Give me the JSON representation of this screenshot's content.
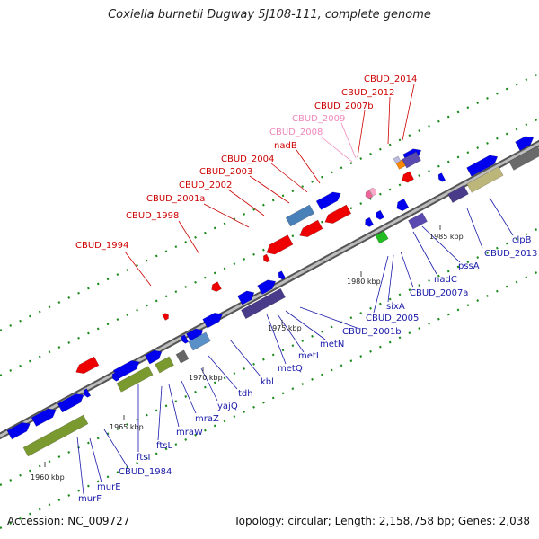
{
  "title": "Coxiella burnetii Dugway 5J108-111, complete genome",
  "footer": {
    "accession": "Accession: NC_009727",
    "info": "Topology: circular; Length: 2,158,758 bp; Genes: 2,038"
  },
  "colors": {
    "red_label": "#cc0000",
    "pink_label": "#ee88bb",
    "blue_label": "#1a1aaa",
    "gene_blue": "#0000ee",
    "gene_red": "#ee0000",
    "gene_olive": "#7a9a30",
    "gene_purple": "#4a3a8a",
    "gene_khaki": "#bdb67a",
    "tick_green": "#1a8a1a"
  },
  "scale_labels": [
    "1960 kbp",
    "1965 kbp",
    "1970 kbp",
    "1975 kbp",
    "1980 kbp",
    "1985 kbp"
  ],
  "red_labels": [
    "CBUD_1994",
    "CBUD_1998",
    "CBUD_2001a",
    "CBUD_2002",
    "CBUD_2003",
    "CBUD_2004",
    "nadB",
    "CBUD_2012",
    "CBUD_2014",
    "CBUD_2007b"
  ],
  "pink_labels": [
    "CBUD_2009",
    "CBUD_2008"
  ],
  "blue_labels": [
    "murF",
    "murE",
    "CBUD_1984",
    "ftsI",
    "ftsL",
    "mraW",
    "mraZ",
    "yajQ",
    "tdh",
    "kbl",
    "metQ",
    "metI",
    "metN",
    "CBUD_2001b",
    "CBUD_2005",
    "sixA",
    "CBUD_2007a",
    "nadC",
    "pssA",
    "CBUD_2013",
    "clpB"
  ]
}
